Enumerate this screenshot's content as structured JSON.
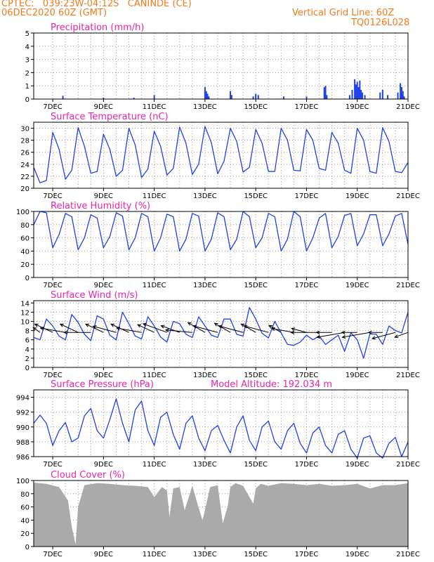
{
  "header": {
    "line1": "CPTEC:   039:23W-04:12S   CANINDE (CE)",
    "line2": "06DEC2020 60Z (GMT)",
    "right1": "Vertical Grid Line: 60Z",
    "right2": "TQ0126L028"
  },
  "colors": {
    "header": "#f07c1c",
    "title": "#ee22aa",
    "series": "#2040ee",
    "wind_arrow": "#000000",
    "cloud": "#aaaaaa",
    "grid": "#999999"
  },
  "x_axis": {
    "start_day": 6.25,
    "end_day": 21,
    "tick_days": [
      7,
      9,
      11,
      13,
      15,
      17,
      19,
      21
    ],
    "tick_labels": [
      "7DEC",
      "9DEC",
      "11DEC",
      "13DEC",
      "15DEC",
      "17DEC",
      "19DEC",
      "21DEC"
    ]
  },
  "chart_data": [
    {
      "id": "precip",
      "type": "bar",
      "title": "Precipitation (mm/h)",
      "ylim": [
        0,
        5
      ],
      "yticks": [
        0,
        1,
        2,
        3,
        4,
        5
      ],
      "grid": true,
      "x_day": [
        7.4,
        9.0,
        10.2,
        11.0,
        13.0,
        13.05,
        13.1,
        13.15,
        14.0,
        14.05,
        14.9,
        15.0,
        15.1,
        16.1,
        17.0,
        17.7,
        17.75,
        17.8,
        18.7,
        18.8,
        18.9,
        18.95,
        19.0,
        19.05,
        19.1,
        19.15,
        19.2,
        19.3,
        19.9,
        20.0,
        20.2,
        20.6,
        20.7,
        20.75,
        20.8,
        20.85
      ],
      "values": [
        0.25,
        0.1,
        0.1,
        0.3,
        0.9,
        0.6,
        0.4,
        0.2,
        0.6,
        0.3,
        0.2,
        0.4,
        0.3,
        0.2,
        0.2,
        0.9,
        1.0,
        0.3,
        0.3,
        0.7,
        1.5,
        1.1,
        1.3,
        0.9,
        1.4,
        0.7,
        0.5,
        0.3,
        0.5,
        0.7,
        0.3,
        0.5,
        1.2,
        0.9,
        0.6,
        0.2
      ]
    },
    {
      "id": "temp",
      "type": "line",
      "title": "Surface Temperature (nC)",
      "ylim": [
        20,
        31
      ],
      "yticks": [
        20,
        22,
        24,
        26,
        28,
        30
      ],
      "grid": true,
      "x_day": [
        6.25,
        6.5,
        6.75,
        7.0,
        7.25,
        7.5,
        7.75,
        8.0,
        8.25,
        8.5,
        8.75,
        9.0,
        9.25,
        9.5,
        9.75,
        10.0,
        10.25,
        10.5,
        10.75,
        11.0,
        11.25,
        11.5,
        11.75,
        12.0,
        12.25,
        12.5,
        12.75,
        13.0,
        13.25,
        13.5,
        13.75,
        14.0,
        14.25,
        14.5,
        14.75,
        15.0,
        15.25,
        15.5,
        15.75,
        16.0,
        16.25,
        16.5,
        16.75,
        17.0,
        17.25,
        17.5,
        17.75,
        18.0,
        18.25,
        18.5,
        18.75,
        19.0,
        19.25,
        19.5,
        19.75,
        20.0,
        20.25,
        20.5,
        20.75,
        21.0
      ],
      "values": [
        23.5,
        20.9,
        21.3,
        29.3,
        26.5,
        21.5,
        23.0,
        30.1,
        27.0,
        22.5,
        22.8,
        29.0,
        26.5,
        22.0,
        23.0,
        30.0,
        27.2,
        21.8,
        23.2,
        29.5,
        27.0,
        22.2,
        23.3,
        30.2,
        27.5,
        22.3,
        24.0,
        30.3,
        27.6,
        22.4,
        24.5,
        30.0,
        27.8,
        22.7,
        23.5,
        29.8,
        27.5,
        22.8,
        22.8,
        30.0,
        28.0,
        23.0,
        22.9,
        29.8,
        28.0,
        23.3,
        23.0,
        29.3,
        27.5,
        23.0,
        22.5,
        30.0,
        28.0,
        22.8,
        22.5,
        30.1,
        27.8,
        22.8,
        22.6,
        24.3
      ]
    },
    {
      "id": "rh",
      "type": "line",
      "title": "Relative Humidity (%)",
      "ylim": [
        0,
        100
      ],
      "yticks": [
        0,
        20,
        40,
        60,
        80,
        100
      ],
      "grid": true,
      "x_day": [
        6.25,
        6.5,
        6.75,
        7.0,
        7.25,
        7.5,
        7.75,
        8.0,
        8.25,
        8.5,
        8.75,
        9.0,
        9.25,
        9.5,
        9.75,
        10.0,
        10.25,
        10.5,
        10.75,
        11.0,
        11.25,
        11.5,
        11.75,
        12.0,
        12.25,
        12.5,
        12.75,
        13.0,
        13.25,
        13.5,
        13.75,
        14.0,
        14.25,
        14.5,
        14.75,
        15.0,
        15.25,
        15.5,
        15.75,
        16.0,
        16.25,
        16.5,
        16.75,
        17.0,
        17.25,
        17.5,
        17.75,
        18.0,
        18.25,
        18.5,
        18.75,
        19.0,
        19.25,
        19.5,
        19.75,
        20.0,
        20.25,
        20.5,
        20.75,
        21.0
      ],
      "values": [
        80,
        100,
        98,
        45,
        65,
        97,
        92,
        42,
        60,
        95,
        90,
        45,
        62,
        98,
        93,
        42,
        60,
        97,
        92,
        40,
        60,
        96,
        92,
        40,
        58,
        97,
        93,
        40,
        58,
        98,
        92,
        42,
        58,
        100,
        92,
        45,
        60,
        97,
        92,
        40,
        58,
        100,
        92,
        40,
        60,
        90,
        97,
        45,
        62,
        94,
        97,
        48,
        66,
        95,
        95,
        48,
        66,
        93,
        97,
        50
      ]
    },
    {
      "id": "wind",
      "type": "line",
      "title": "Surface Wind (m/s)",
      "ylim": [
        0,
        14.5
      ],
      "yticks": [
        0,
        2,
        4,
        6,
        8,
        10,
        12,
        14
      ],
      "grid": true,
      "x_day": [
        6.25,
        6.5,
        6.75,
        7.0,
        7.25,
        7.5,
        7.75,
        8.0,
        8.25,
        8.5,
        8.75,
        9.0,
        9.25,
        9.5,
        9.75,
        10.0,
        10.25,
        10.5,
        10.75,
        11.0,
        11.25,
        11.5,
        11.75,
        12.0,
        12.25,
        12.5,
        12.75,
        13.0,
        13.25,
        13.5,
        13.75,
        14.0,
        14.25,
        14.5,
        14.75,
        15.0,
        15.25,
        15.5,
        15.75,
        16.0,
        16.25,
        16.5,
        16.75,
        17.0,
        17.25,
        17.5,
        17.75,
        18.0,
        18.25,
        18.5,
        18.75,
        19.0,
        19.25,
        19.5,
        19.75,
        20.0,
        20.25,
        20.5,
        20.75,
        21.0
      ],
      "values": [
        6.5,
        6.0,
        10.5,
        9.0,
        6.8,
        6.0,
        11.5,
        9.8,
        7.2,
        5.8,
        11.2,
        10.5,
        7.0,
        6.0,
        12.0,
        9.5,
        6.8,
        6.2,
        11.0,
        9.0,
        6.6,
        5.5,
        10.0,
        9.5,
        7.2,
        6.5,
        11.0,
        9.0,
        7.0,
        6.5,
        10.5,
        10.5,
        7.2,
        6.8,
        13.0,
        10.5,
        7.4,
        6.4,
        10.0,
        7.5,
        5.0,
        4.8,
        5.5,
        7.0,
        6.0,
        6.8,
        5.0,
        6.0,
        7.0,
        3.5,
        7.5,
        6.0,
        2.0,
        7.3,
        7.2,
        5.0,
        9.0,
        8.0,
        7.5,
        12.0
      ],
      "arrows_day": [
        6.5,
        7.0,
        7.5,
        8.0,
        8.5,
        9.0,
        9.5,
        10.0,
        10.5,
        11.0,
        11.5,
        12.0,
        12.5,
        13.0,
        13.5,
        14.0,
        14.5,
        15.0,
        15.5,
        16.0,
        16.5,
        17.0,
        17.5,
        18.0,
        18.5,
        19.0,
        19.5,
        20.0,
        20.5,
        21.0
      ],
      "arrows_len": [
        12,
        28,
        36,
        28,
        38,
        28,
        34,
        28,
        36,
        26,
        36,
        28,
        38,
        28,
        36,
        26,
        36,
        24,
        36,
        20,
        32,
        22,
        40,
        22,
        40,
        22,
        40,
        20,
        34,
        20
      ],
      "arrows_ang": [
        145,
        155,
        170,
        155,
        180,
        155,
        165,
        155,
        170,
        155,
        160,
        160,
        175,
        150,
        165,
        150,
        165,
        150,
        165,
        150,
        170,
        165,
        180,
        180,
        190,
        180,
        190,
        180,
        195,
        200
      ]
    },
    {
      "id": "pressure",
      "type": "line",
      "title": "Surface Pressure (hPa)",
      "subtitle": "Model Altitude: 192.034 m",
      "ylim": [
        986,
        995
      ],
      "yticks": [
        986,
        988,
        990,
        992,
        994
      ],
      "grid": true,
      "x_day": [
        6.25,
        6.5,
        6.75,
        7.0,
        7.25,
        7.5,
        7.75,
        8.0,
        8.25,
        8.5,
        8.75,
        9.0,
        9.25,
        9.5,
        9.75,
        10.0,
        10.25,
        10.5,
        10.75,
        11.0,
        11.25,
        11.5,
        11.75,
        12.0,
        12.25,
        12.5,
        12.75,
        13.0,
        13.25,
        13.5,
        13.75,
        14.0,
        14.25,
        14.5,
        14.75,
        15.0,
        15.25,
        15.5,
        15.75,
        16.0,
        16.25,
        16.5,
        16.75,
        17.0,
        17.25,
        17.5,
        17.75,
        18.0,
        18.25,
        18.5,
        18.75,
        19.0,
        19.25,
        19.5,
        19.75,
        20.0,
        20.25,
        20.5,
        20.75,
        21.0
      ],
      "values": [
        990.5,
        991.6,
        990.5,
        987.5,
        989.5,
        990.6,
        988.0,
        988.5,
        991.5,
        992.5,
        989.5,
        988.5,
        991.0,
        993.8,
        990.5,
        988.0,
        992.3,
        993.5,
        989.5,
        987.5,
        991.3,
        992.0,
        989.0,
        987.0,
        990.5,
        991.5,
        988.5,
        986.8,
        989.5,
        990.2,
        988.2,
        986.5,
        990.0,
        991.5,
        988.2,
        986.8,
        990.0,
        990.8,
        988.0,
        987.0,
        989.5,
        990.5,
        987.8,
        986.5,
        989.2,
        990.0,
        987.5,
        986.5,
        989.0,
        989.5,
        987.0,
        985.8,
        988.5,
        988.8,
        986.5,
        985.8,
        987.8,
        988.6,
        986.0,
        988.0
      ]
    },
    {
      "id": "cloud",
      "type": "area",
      "title": "Cloud Cover (%)",
      "ylim": [
        0,
        100
      ],
      "yticks": [
        0,
        20,
        40,
        60,
        80,
        100
      ],
      "grid": true,
      "x_day": [
        6.25,
        6.75,
        7.25,
        7.6,
        7.75,
        7.9,
        8.0,
        8.25,
        8.75,
        9.25,
        9.75,
        10.25,
        10.75,
        11.0,
        11.3,
        11.5,
        11.6,
        11.75,
        12.0,
        12.2,
        12.5,
        12.7,
        12.9,
        13.0,
        13.2,
        13.5,
        13.7,
        13.9,
        14.0,
        14.2,
        14.5,
        14.9,
        15.0,
        15.2,
        15.5,
        16.0,
        16.5,
        17.0,
        17.5,
        18.0,
        18.5,
        19.0,
        19.5,
        20.0,
        20.5,
        21.0
      ],
      "values": [
        97,
        95,
        90,
        70,
        30,
        3,
        60,
        93,
        96,
        95,
        93,
        92,
        90,
        75,
        90,
        85,
        45,
        88,
        90,
        55,
        92,
        65,
        40,
        55,
        90,
        93,
        35,
        62,
        90,
        96,
        92,
        65,
        88,
        95,
        92,
        96,
        95,
        93,
        95,
        92,
        93,
        95,
        88,
        93,
        93,
        96
      ]
    }
  ]
}
